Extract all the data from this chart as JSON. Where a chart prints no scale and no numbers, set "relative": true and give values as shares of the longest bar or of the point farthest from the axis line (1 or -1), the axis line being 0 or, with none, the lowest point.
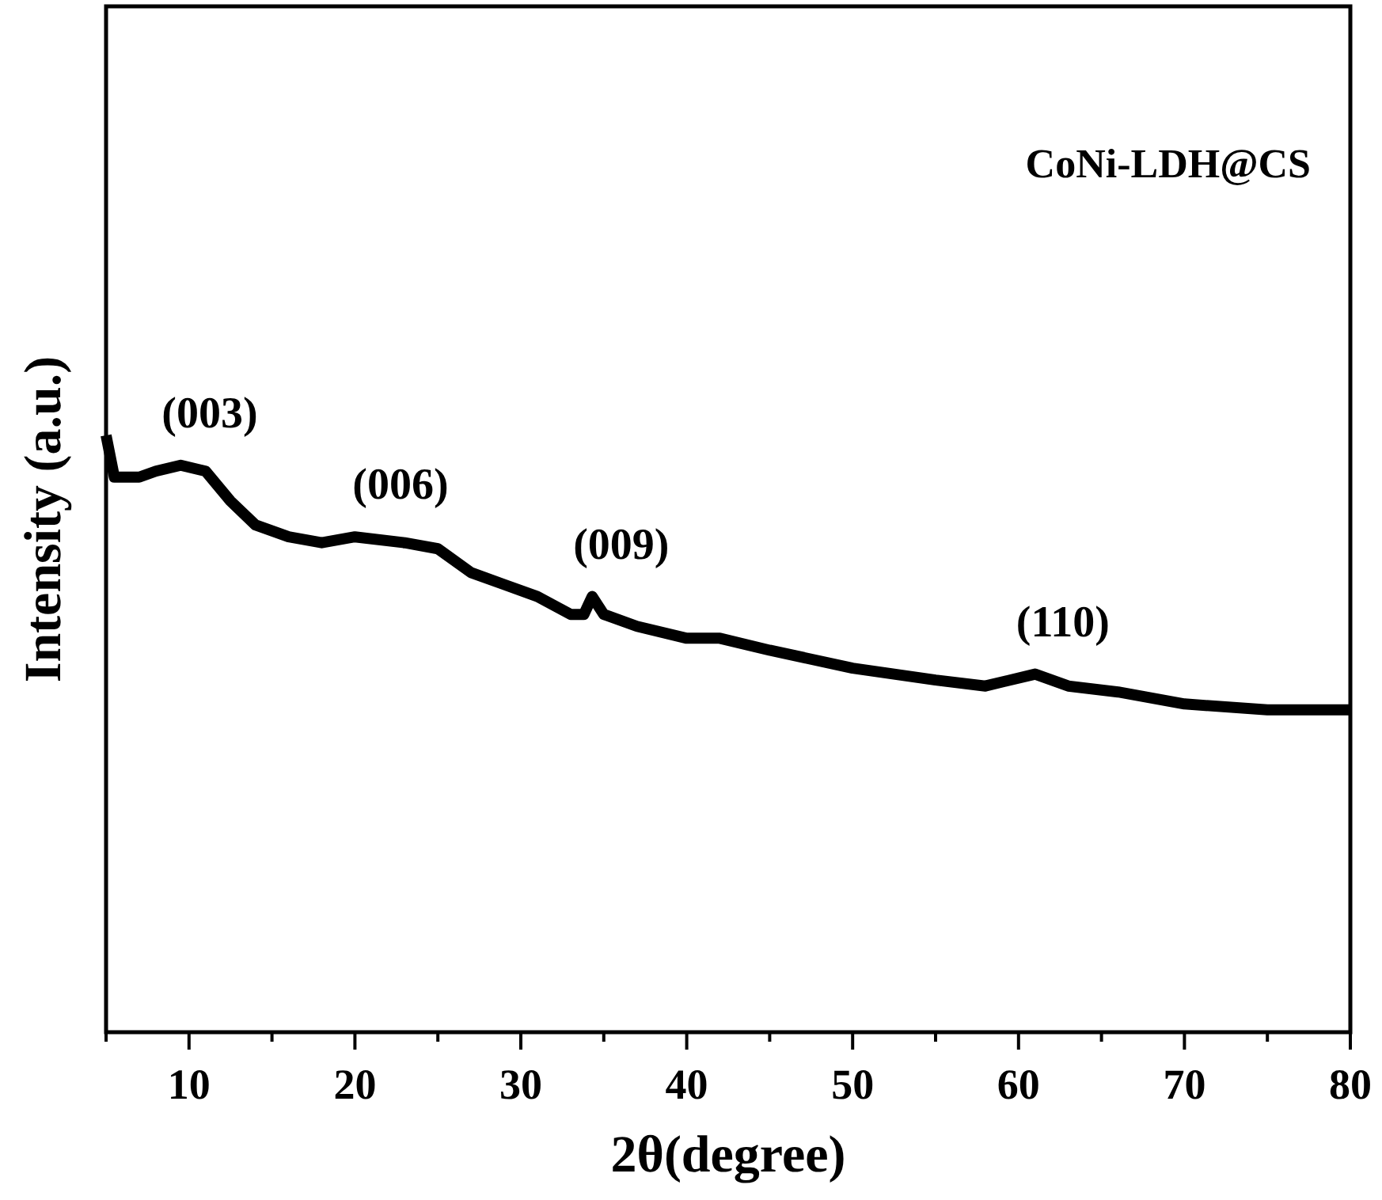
{
  "chart_data": {
    "type": "line",
    "relative": true,
    "xlabel": "2θ(degree)",
    "ylabel": "Intensity (a.u.)",
    "legend": "top right",
    "xlim": [
      5,
      80
    ],
    "xticks": [
      {
        "value": 5,
        "label": null
      },
      10,
      {
        "value": 15,
        "label": null
      },
      20,
      {
        "value": 25,
        "label": null
      },
      30,
      {
        "value": 35,
        "label": null
      },
      40,
      {
        "value": 45,
        "label": null
      },
      50,
      {
        "value": 55,
        "label": null
      },
      60,
      {
        "value": 65,
        "label": null
      },
      70,
      {
        "value": 75,
        "label": null
      },
      80
    ],
    "series": [
      {
        "name": "CoNi-LDH@CS",
        "color": "#000000",
        "x": [
          5,
          5.5,
          7,
          8,
          9.5,
          11,
          12.5,
          14,
          16,
          18,
          20,
          23,
          25,
          27,
          29,
          31,
          33,
          33.8,
          34.3,
          35,
          37,
          40,
          42,
          45,
          50,
          55,
          58,
          61,
          63,
          66,
          70,
          75,
          80
        ],
        "values": [
          1.0,
          0.93,
          0.93,
          0.94,
          0.95,
          0.94,
          0.89,
          0.85,
          0.83,
          0.82,
          0.83,
          0.82,
          0.81,
          0.77,
          0.75,
          0.73,
          0.7,
          0.7,
          0.73,
          0.7,
          0.68,
          0.66,
          0.66,
          0.64,
          0.61,
          0.59,
          0.58,
          0.6,
          0.58,
          0.57,
          0.55,
          0.54,
          0.54
        ]
      }
    ],
    "annotations": [
      {
        "text": "(003)",
        "x": 9.5,
        "y": 0.95
      },
      {
        "text": "(006)",
        "x": 21,
        "y": 0.83
      },
      {
        "text": "(009)",
        "x": 34.3,
        "y": 0.73
      },
      {
        "text": "(110)",
        "x": 61,
        "y": 0.6
      }
    ]
  }
}
